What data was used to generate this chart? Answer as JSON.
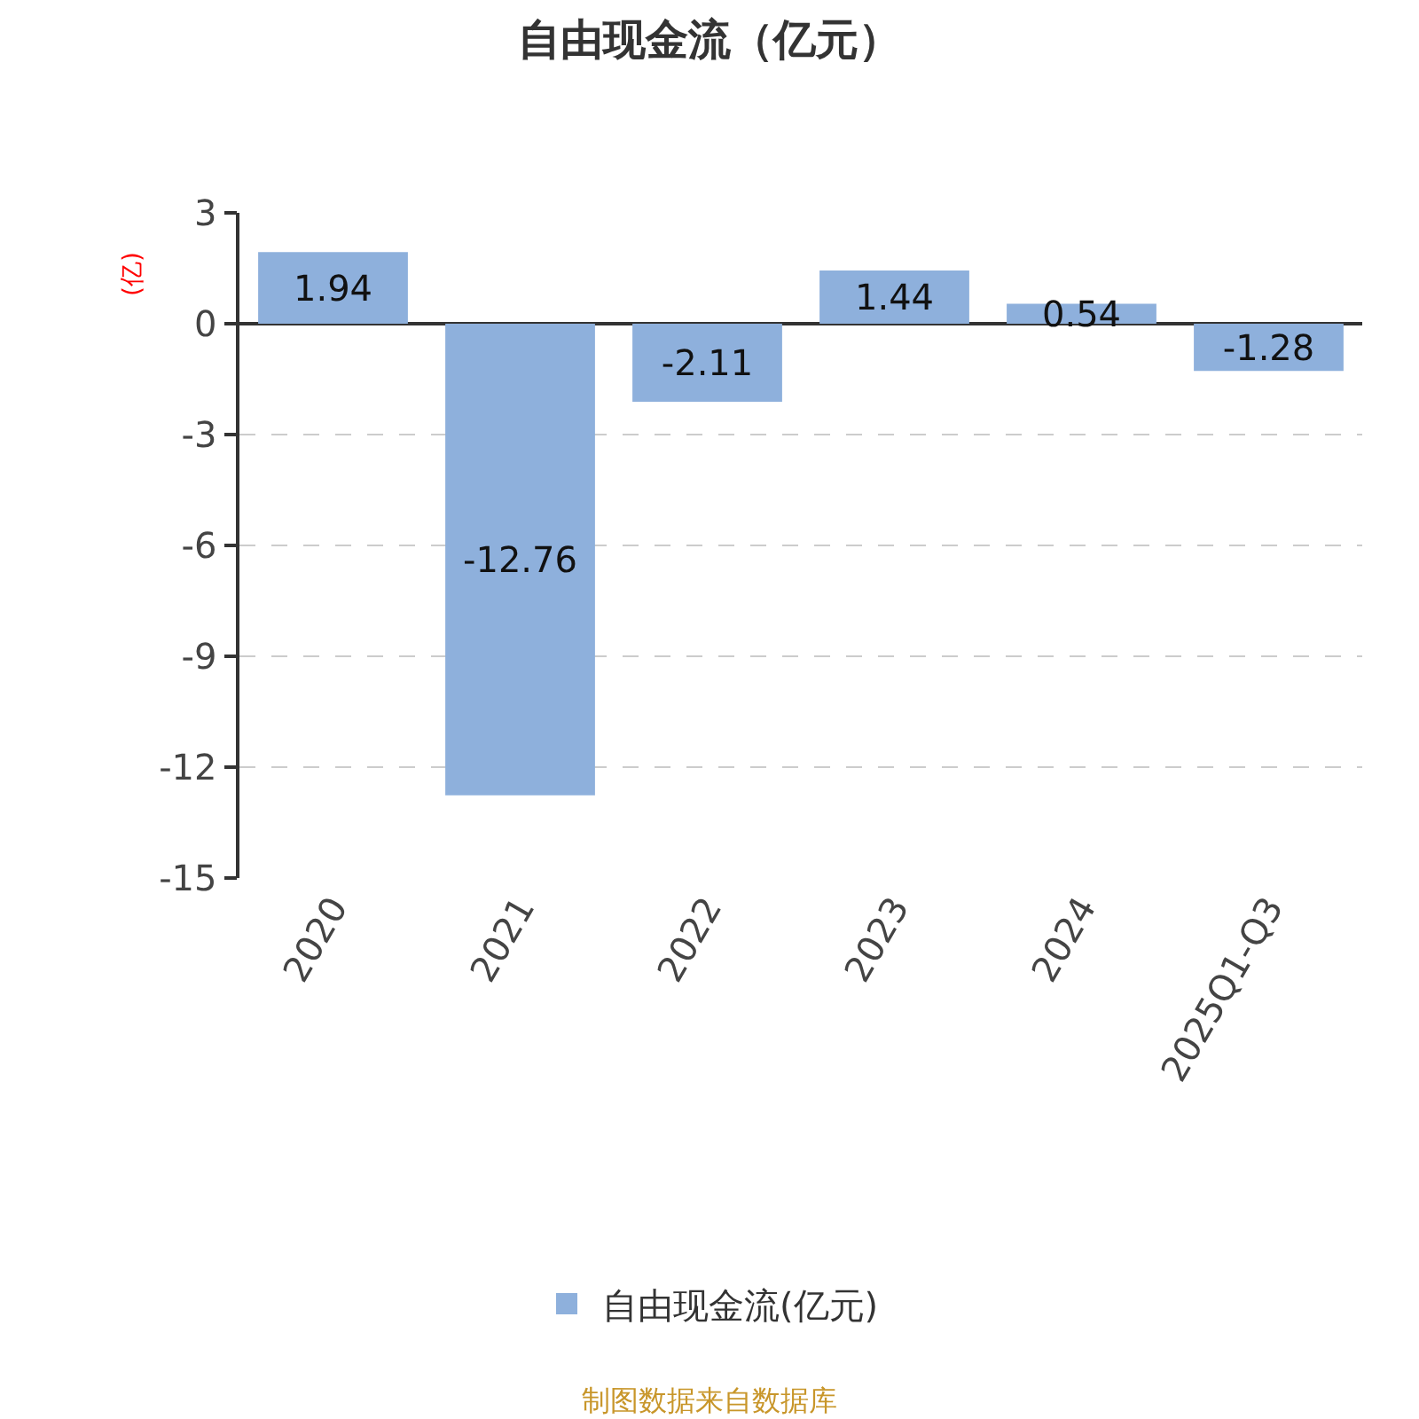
{
  "chart_data": {
    "type": "bar",
    "title": "自由现金流（亿元）",
    "ylabel": "(亿)",
    "categories": [
      "2020",
      "2021",
      "2022",
      "2023",
      "2024",
      "2025Q1-Q3"
    ],
    "series": [
      {
        "name": "自由现金流(亿元)",
        "color": "#8eb0dc",
        "values": [
          1.94,
          -12.76,
          -2.11,
          1.44,
          0.54,
          -1.28
        ]
      }
    ],
    "ylim": [
      -15,
      3
    ],
    "yticks": [
      3,
      0,
      -3,
      -6,
      -9,
      -12,
      -15
    ],
    "grid": "y",
    "legend": "bottom",
    "data_labels": true,
    "annotations": [
      "制图数据来自数据库"
    ]
  }
}
